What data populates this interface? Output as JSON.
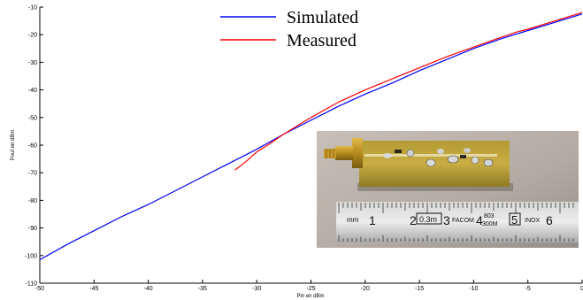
{
  "chart_data": {
    "type": "line",
    "title": "",
    "xlabel": "Pin en dBm",
    "ylabel": "Pout en dBm",
    "xlim": [
      -50,
      0
    ],
    "ylim": [
      -110,
      -10
    ],
    "x_ticks": [
      -50,
      -45,
      -40,
      -35,
      -30,
      -25,
      -20,
      -15,
      -10,
      -5,
      0
    ],
    "y_ticks": [
      -10,
      -20,
      -30,
      -40,
      -50,
      -60,
      -70,
      -80,
      -90,
      -100,
      -110
    ],
    "grid": false,
    "legend_position": "top-center",
    "series": [
      {
        "name": "Simulated",
        "color": "#0000ff",
        "x": [
          -50,
          -47.5,
          -45,
          -42.5,
          -40,
          -37.5,
          -35,
          -32.5,
          -30,
          -27.5,
          -25,
          -22.5,
          -20,
          -17.5,
          -15,
          -12.5,
          -10,
          -7.5,
          -5,
          -2.5,
          0
        ],
        "y": [
          -101.5,
          -96,
          -91,
          -86,
          -81.5,
          -76.5,
          -71.5,
          -66.5,
          -61.5,
          -56,
          -51,
          -46,
          -41.5,
          -37.5,
          -33,
          -29,
          -25,
          -21.5,
          -18.5,
          -15.5,
          -12.5
        ]
      },
      {
        "name": "Measured",
        "color": "#ff0000",
        "x": [
          -32,
          -31,
          -30,
          -29,
          -27.5,
          -25,
          -22.5,
          -20,
          -17.5,
          -15,
          -12.5,
          -10,
          -7.5,
          -6,
          -5,
          -2.5,
          0
        ],
        "y": [
          -69,
          -66,
          -62.5,
          -60,
          -56,
          -50,
          -44.5,
          -40,
          -36,
          -32,
          -28,
          -24.5,
          -21,
          -19,
          -18,
          -15,
          -12
        ]
      }
    ]
  },
  "inset_photo": {
    "ruler_text": "mm 1 2 0.3m 3 FACOM 4 803 300M 5 INOX 6"
  }
}
